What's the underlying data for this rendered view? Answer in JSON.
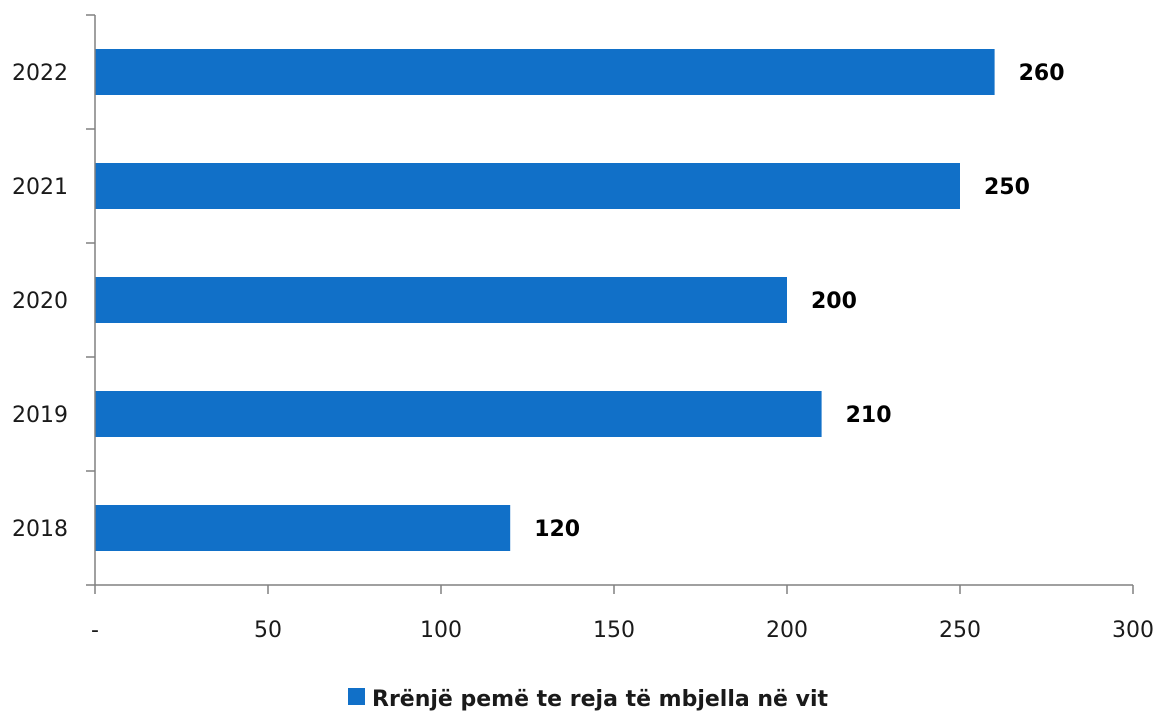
{
  "chart_data": {
    "type": "bar",
    "orientation": "horizontal",
    "categories": [
      "2018",
      "2019",
      "2020",
      "2021",
      "2022"
    ],
    "series": [
      {
        "name": "Rrënjë pemë te reja të mbjella në vit",
        "values": [
          120,
          210,
          200,
          250,
          260
        ],
        "color": "#1170c8"
      }
    ],
    "data_labels": [
      "120",
      "210",
      "200",
      "250",
      "260"
    ],
    "xlim": [
      0,
      300
    ],
    "x_ticks": [
      0,
      50,
      100,
      150,
      200,
      250,
      300
    ],
    "x_tick_labels": [
      "-",
      "50",
      "100",
      "150",
      "200",
      "250",
      "300"
    ],
    "axis_color": "#808080",
    "grid": false,
    "legend_position": "bottom"
  }
}
